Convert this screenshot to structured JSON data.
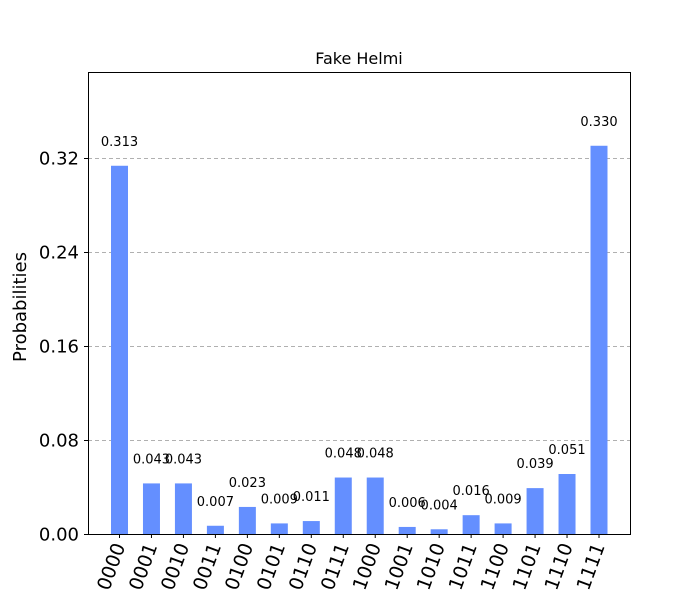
{
  "chart_data": {
    "type": "bar",
    "title": "Fake Helmi",
    "ylabel": "Probabilities",
    "xlabel": "",
    "categories": [
      "0000",
      "0001",
      "0010",
      "0011",
      "0100",
      "0101",
      "0110",
      "0111",
      "1000",
      "1001",
      "1010",
      "1011",
      "1100",
      "1101",
      "1110",
      "1111"
    ],
    "values": [
      0.313,
      0.043,
      0.043,
      0.007,
      0.023,
      0.009,
      0.011,
      0.048,
      0.048,
      0.006,
      0.004,
      0.016,
      0.009,
      0.039,
      0.051,
      0.33
    ],
    "value_labels": [
      "0.313",
      "0.043",
      "0.043",
      "0.007",
      "0.023",
      "0.009",
      "0.011",
      "0.048",
      "0.048",
      "0.006",
      "0.004",
      "0.016",
      "0.009",
      "0.039",
      "0.051",
      "0.330"
    ],
    "yticks": [
      0.0,
      0.08,
      0.16,
      0.24,
      0.32
    ],
    "ytick_labels": [
      "0.00",
      "0.08",
      "0.16",
      "0.24",
      "0.32"
    ],
    "ylim": [
      0,
      0.3927
    ],
    "grid": "horizontal dashed",
    "bar_color": "#648fff"
  }
}
